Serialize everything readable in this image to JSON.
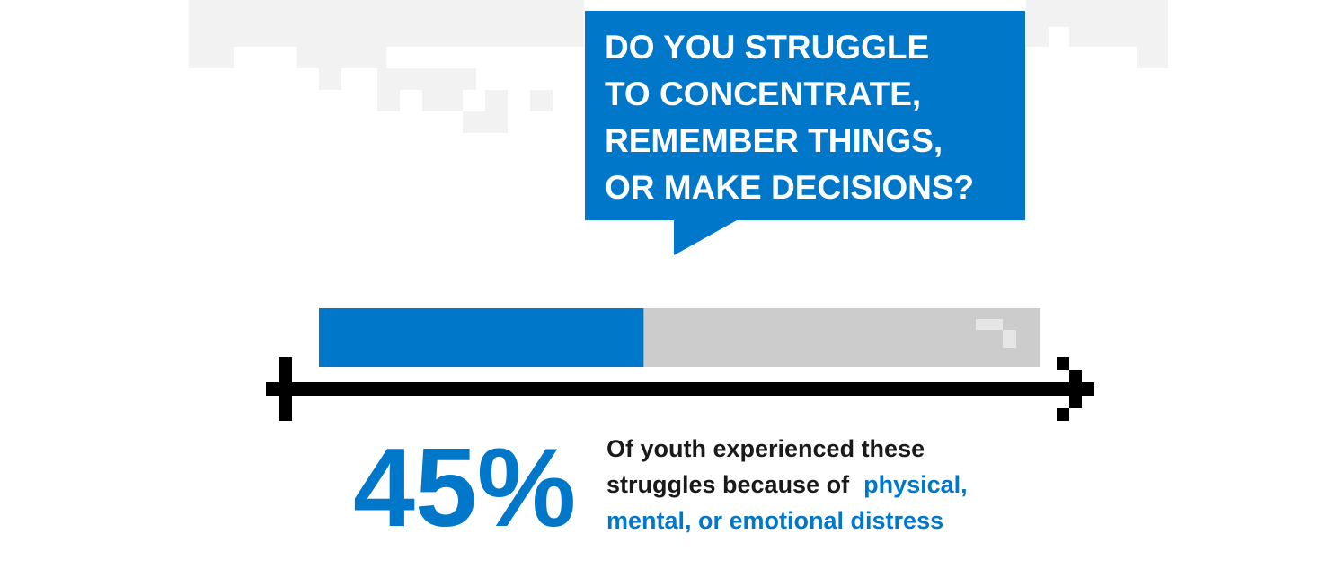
{
  "question": {
    "lines": [
      "DO YOU STRUGGLE",
      "TO CONCENTRATE,",
      "REMEMBER THINGS,",
      "OR MAKE DECISIONS?"
    ]
  },
  "stat": {
    "value": 45,
    "label": "45%"
  },
  "description": {
    "lines": [
      [
        {
          "text": "Of youth experienced these",
          "highlight": false
        }
      ],
      [
        {
          "text": "struggles because of",
          "highlight": false
        },
        {
          "text": "physical,",
          "highlight": true
        }
      ],
      [
        {
          "text": "mental, or emotional distress",
          "highlight": true
        }
      ]
    ]
  }
}
